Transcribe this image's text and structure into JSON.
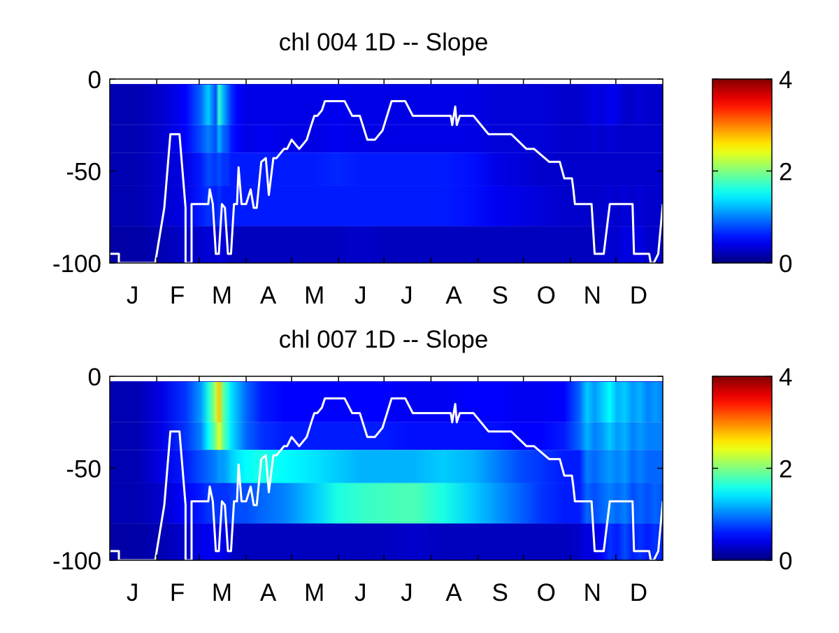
{
  "chart_data": [
    {
      "type": "heatmap",
      "title": "chl  004 1D   -- Slope",
      "x_tick_labels": [
        "J",
        "F",
        "M",
        "A",
        "M",
        "J",
        "J",
        "A",
        "S",
        "O",
        "N",
        "D"
      ],
      "y_tick_labels": [
        "0",
        "-50",
        "-100"
      ],
      "ylim": [
        -100,
        0
      ],
      "colorbar": {
        "ticks": [
          "4",
          "2",
          "0"
        ],
        "range": [
          0,
          4
        ],
        "colormap": "jet"
      },
      "line_color": "#ffffff",
      "depth_bands": [
        0,
        -3,
        -25,
        -40,
        -58,
        -80,
        -100
      ],
      "column_days": [
        0,
        18,
        34,
        50,
        60,
        65,
        70,
        72,
        75,
        78,
        80,
        84,
        90,
        100,
        115,
        135,
        150,
        165,
        180,
        200,
        220,
        240,
        255,
        270,
        285,
        300,
        310,
        315,
        320,
        325,
        330,
        335,
        340,
        345,
        350,
        355,
        360,
        365
      ],
      "heat_values": [
        [
          0.3,
          0.3,
          0.3,
          0.3,
          0.3,
          0.3,
          0.3,
          0.3,
          0.3,
          0.3,
          0.3,
          0.3,
          0.3,
          0.3,
          0.3,
          0.3,
          0.3,
          0.3,
          0.3,
          0.3,
          0.3,
          0.3,
          0.3,
          0.3,
          0.3,
          0.3,
          0.3,
          0.3,
          0.3,
          0.3,
          0.3,
          0.3,
          0.3,
          0.3,
          0.3,
          0.3,
          0.3,
          0.3
        ],
        [
          0.2,
          0.2,
          0.3,
          0.5,
          0.9,
          1.3,
          0.8,
          1.7,
          1.2,
          0.9,
          0.7,
          0.5,
          0.4,
          0.4,
          0.4,
          0.4,
          0.45,
          0.4,
          0.4,
          0.4,
          0.4,
          0.4,
          0.35,
          0.35,
          0.35,
          0.3,
          0.3,
          0.35,
          0.4,
          0.35,
          0.45,
          0.4,
          0.3,
          0.3,
          0.35,
          0.3,
          0.3,
          0.3
        ],
        [
          0.2,
          0.2,
          0.3,
          0.5,
          0.8,
          1.0,
          0.8,
          1.2,
          0.9,
          0.8,
          0.6,
          0.5,
          0.4,
          0.45,
          0.4,
          0.4,
          0.45,
          0.4,
          0.4,
          0.4,
          0.4,
          0.4,
          0.35,
          0.35,
          0.35,
          0.3,
          0.3,
          0.3,
          0.35,
          0.3,
          0.35,
          0.3,
          0.3,
          0.3,
          0.3,
          0.3,
          0.3,
          0.3
        ],
        [
          0.2,
          0.2,
          0.3,
          0.4,
          0.6,
          0.8,
          0.7,
          0.8,
          0.7,
          0.7,
          0.6,
          0.6,
          0.6,
          0.6,
          0.6,
          0.6,
          0.65,
          0.6,
          0.6,
          0.6,
          0.6,
          0.55,
          0.4,
          0.35,
          0.3,
          0.3,
          0.3,
          0.3,
          0.3,
          0.3,
          0.3,
          0.3,
          0.3,
          0.3,
          0.3,
          0.3,
          0.3,
          0.3
        ],
        [
          0.2,
          0.2,
          0.3,
          0.4,
          0.6,
          0.7,
          0.6,
          0.7,
          0.6,
          0.6,
          0.6,
          0.6,
          0.6,
          0.6,
          0.6,
          0.6,
          0.6,
          0.6,
          0.6,
          0.6,
          0.6,
          0.55,
          0.45,
          0.4,
          0.35,
          0.3,
          0.3,
          0.3,
          0.3,
          0.3,
          0.35,
          0.3,
          0.35,
          0.3,
          0.35,
          0.3,
          0.3,
          0.3
        ],
        [
          0.15,
          0.15,
          0.2,
          0.3,
          0.3,
          0.35,
          0.3,
          0.4,
          0.35,
          0.3,
          0.25,
          0.25,
          0.25,
          0.25,
          0.25,
          0.25,
          0.25,
          0.3,
          0.25,
          0.25,
          0.25,
          0.25,
          0.25,
          0.25,
          0.25,
          0.25,
          0.25,
          0.25,
          0.25,
          0.3,
          0.35,
          0.3,
          0.4,
          0.35,
          0.4,
          0.3,
          0.3,
          0.3
        ],
        [
          0.15,
          0.15,
          0.15,
          0.2,
          0.2,
          0.2,
          0.2,
          0.2,
          0.2,
          0.2,
          0.2,
          0.2,
          0.2,
          0.2,
          0.2,
          0.2,
          0.2,
          0.2,
          0.2,
          0.2,
          0.2,
          0.2,
          0.2,
          0.2,
          0.2,
          0.2,
          0.2,
          0.2,
          0.2,
          0.2,
          0.2,
          0.2,
          0.2,
          0.2,
          0.2,
          0.2,
          0.2,
          0.2
        ]
      ],
      "line_series": {
        "day": [
          0,
          6,
          6,
          30,
          36,
          40,
          46,
          50,
          50,
          54,
          54,
          60,
          65,
          66,
          68,
          70,
          72,
          74,
          76,
          78,
          80,
          82,
          84,
          85,
          87,
          90,
          93,
          95,
          97,
          100,
          103,
          105,
          108,
          110,
          113,
          115,
          117,
          120,
          125,
          130,
          133,
          135,
          137,
          140,
          142,
          144,
          146,
          150,
          155,
          160,
          165,
          170,
          175,
          180,
          186,
          190,
          195,
          200,
          206,
          215,
          220,
          225,
          226,
          228,
          229,
          231,
          240,
          250,
          255,
          260,
          265,
          275,
          280,
          290,
          297,
          300,
          305,
          306,
          307,
          308,
          310,
          312,
          318,
          320,
          322,
          326,
          330,
          345,
          346,
          350,
          352,
          356,
          357,
          359,
          362,
          365
        ],
        "depth": [
          -95,
          -95,
          -100,
          -100,
          -70,
          -30,
          -30,
          -70,
          -100,
          -100,
          -68,
          -68,
          -68,
          -60,
          -68,
          -95,
          -95,
          -68,
          -70,
          -95,
          -95,
          -68,
          -68,
          -48,
          -68,
          -68,
          -60,
          -70,
          -70,
          -45,
          -43,
          -63,
          -43,
          -43,
          -40,
          -38,
          -38,
          -33,
          -38,
          -33,
          -25,
          -20,
          -20,
          -17,
          -12,
          -12,
          -12,
          -12,
          -12,
          -20,
          -20,
          -33,
          -33,
          -28,
          -12,
          -12,
          -12,
          -20,
          -20,
          -20,
          -20,
          -20,
          -25,
          -15,
          -25,
          -20,
          -20,
          -30,
          -30,
          -30,
          -30,
          -38,
          -38,
          -45,
          -45,
          -54,
          -54,
          -60,
          -68,
          -68,
          -68,
          -68,
          -68,
          -95,
          -95,
          -95,
          -68,
          -68,
          -95,
          -95,
          -95,
          -95,
          -100,
          -100,
          -95,
          -68
        ]
      }
    },
    {
      "type": "heatmap",
      "title": "chl  007 1D   -- Slope",
      "x_tick_labels": [
        "J",
        "F",
        "M",
        "A",
        "M",
        "J",
        "J",
        "A",
        "S",
        "O",
        "N",
        "D"
      ],
      "y_tick_labels": [
        "0",
        "-50",
        "-100"
      ],
      "ylim": [
        -100,
        0
      ],
      "colorbar": {
        "ticks": [
          "4",
          "2",
          "0"
        ],
        "range": [
          0,
          4
        ],
        "colormap": "jet"
      },
      "line_color": "#ffffff",
      "depth_bands": [
        0,
        -3,
        -25,
        -40,
        -58,
        -80,
        -100
      ],
      "column_days": [
        0,
        18,
        34,
        50,
        60,
        65,
        70,
        72,
        75,
        78,
        80,
        84,
        90,
        100,
        115,
        135,
        150,
        165,
        180,
        200,
        220,
        240,
        255,
        270,
        285,
        300,
        310,
        315,
        320,
        325,
        330,
        335,
        340,
        345,
        350,
        355,
        360,
        365
      ],
      "heat_values": [
        [
          0.3,
          0.3,
          0.3,
          0.3,
          0.3,
          0.3,
          0.3,
          0.3,
          0.3,
          0.3,
          0.3,
          0.3,
          0.3,
          0.3,
          0.3,
          0.3,
          0.3,
          0.3,
          0.3,
          0.3,
          0.3,
          0.3,
          0.3,
          0.3,
          0.3,
          0.3,
          0.3,
          0.3,
          0.3,
          0.3,
          0.3,
          0.3,
          0.3,
          0.3,
          0.3,
          0.3,
          0.3,
          0.3
        ],
        [
          0.2,
          0.2,
          0.4,
          0.7,
          1.1,
          1.6,
          2.2,
          2.7,
          1.9,
          1.6,
          1.4,
          1.2,
          0.9,
          0.6,
          0.5,
          0.5,
          0.5,
          0.5,
          0.5,
          0.45,
          0.45,
          0.5,
          0.5,
          0.45,
          0.45,
          0.5,
          0.9,
          1.3,
          1.1,
          1.3,
          1.5,
          1.2,
          1.3,
          1.1,
          1.2,
          1.0,
          1.1,
          1.0
        ],
        [
          0.2,
          0.2,
          0.4,
          0.7,
          1.0,
          1.5,
          2.0,
          2.4,
          1.9,
          1.6,
          1.4,
          1.2,
          0.9,
          0.7,
          0.6,
          0.6,
          0.6,
          0.6,
          0.6,
          0.55,
          0.55,
          0.55,
          0.55,
          0.5,
          0.5,
          0.6,
          0.9,
          1.2,
          1.0,
          1.1,
          1.3,
          1.1,
          1.2,
          1.0,
          1.1,
          1.0,
          1.0,
          1.0
        ],
        [
          0.2,
          0.2,
          0.4,
          0.6,
          0.8,
          0.9,
          1.0,
          1.1,
          1.1,
          1.2,
          1.3,
          1.4,
          1.5,
          1.6,
          1.5,
          1.4,
          1.3,
          1.2,
          1.2,
          1.2,
          1.3,
          1.2,
          1.0,
          0.8,
          0.7,
          0.6,
          0.6,
          1.0,
          0.9,
          1.0,
          1.1,
          1.0,
          1.1,
          0.9,
          1.0,
          0.9,
          0.9,
          0.9
        ],
        [
          0.2,
          0.2,
          0.3,
          0.5,
          0.6,
          0.7,
          0.7,
          0.7,
          0.7,
          0.7,
          0.75,
          0.8,
          0.8,
          0.9,
          1.0,
          1.3,
          1.6,
          1.7,
          1.75,
          1.8,
          1.6,
          1.3,
          1.1,
          0.9,
          0.7,
          0.6,
          0.6,
          0.9,
          0.8,
          0.9,
          1.0,
          0.9,
          1.0,
          0.8,
          0.9,
          0.8,
          0.9,
          0.8
        ],
        [
          0.15,
          0.15,
          0.2,
          0.3,
          0.4,
          0.45,
          0.4,
          0.45,
          0.4,
          0.35,
          0.3,
          0.25,
          0.25,
          0.25,
          0.25,
          0.25,
          0.25,
          0.25,
          0.25,
          0.3,
          0.25,
          0.25,
          0.25,
          0.25,
          0.25,
          0.25,
          0.3,
          0.4,
          0.35,
          0.5,
          0.7,
          0.6,
          0.8,
          0.6,
          0.7,
          0.6,
          0.7,
          0.6
        ],
        [
          0.15,
          0.15,
          0.15,
          0.2,
          0.2,
          0.25,
          0.2,
          0.2,
          0.2,
          0.2,
          0.2,
          0.2,
          0.2,
          0.2,
          0.2,
          0.2,
          0.2,
          0.2,
          0.2,
          0.2,
          0.2,
          0.2,
          0.2,
          0.2,
          0.2,
          0.2,
          0.2,
          0.2,
          0.2,
          0.2,
          0.2,
          0.2,
          0.2,
          0.2,
          0.2,
          0.2,
          0.2,
          0.2
        ]
      ],
      "line_series": {
        "day": [
          0,
          6,
          6,
          30,
          36,
          40,
          46,
          50,
          50,
          54,
          54,
          60,
          65,
          66,
          68,
          70,
          72,
          74,
          76,
          78,
          80,
          82,
          84,
          85,
          87,
          90,
          93,
          95,
          97,
          100,
          103,
          105,
          108,
          110,
          113,
          115,
          117,
          120,
          125,
          130,
          133,
          135,
          137,
          140,
          142,
          144,
          146,
          150,
          155,
          160,
          165,
          170,
          175,
          180,
          186,
          190,
          195,
          200,
          206,
          215,
          220,
          225,
          226,
          228,
          229,
          231,
          240,
          250,
          255,
          260,
          265,
          275,
          280,
          290,
          297,
          300,
          305,
          306,
          307,
          308,
          310,
          312,
          318,
          320,
          322,
          326,
          330,
          345,
          346,
          350,
          352,
          356,
          357,
          359,
          362,
          365
        ],
        "depth": [
          -95,
          -95,
          -100,
          -100,
          -70,
          -30,
          -30,
          -70,
          -100,
          -100,
          -68,
          -68,
          -68,
          -60,
          -68,
          -95,
          -95,
          -68,
          -70,
          -95,
          -95,
          -68,
          -68,
          -48,
          -68,
          -68,
          -60,
          -70,
          -70,
          -45,
          -43,
          -63,
          -43,
          -43,
          -40,
          -38,
          -38,
          -33,
          -38,
          -33,
          -25,
          -20,
          -20,
          -17,
          -12,
          -12,
          -12,
          -12,
          -12,
          -20,
          -20,
          -33,
          -33,
          -28,
          -12,
          -12,
          -12,
          -20,
          -20,
          -20,
          -20,
          -20,
          -25,
          -15,
          -25,
          -20,
          -20,
          -30,
          -30,
          -30,
          -30,
          -38,
          -38,
          -45,
          -45,
          -54,
          -54,
          -60,
          -68,
          -68,
          -68,
          -68,
          -68,
          -95,
          -95,
          -95,
          -68,
          -68,
          -95,
          -95,
          -95,
          -95,
          -100,
          -100,
          -95,
          -68
        ]
      }
    }
  ]
}
